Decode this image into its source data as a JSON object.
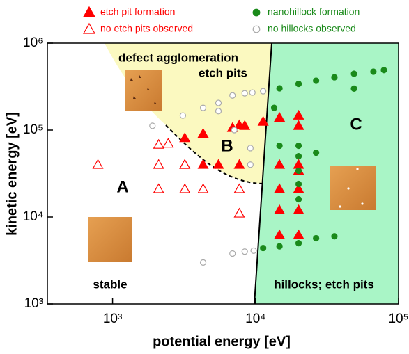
{
  "chart_data": {
    "type": "scatter",
    "x_label": "potential energy [eV]",
    "y_label": "kinetic energy [eV]",
    "x_scale": "log",
    "y_scale": "log",
    "xlim": [
      350,
      100000
    ],
    "ylim": [
      1000,
      1000000
    ],
    "xticks": [
      {
        "value": 1000,
        "label": "10³"
      },
      {
        "value": 10000,
        "label": "10⁴"
      },
      {
        "value": 100000,
        "label": "10⁵"
      }
    ],
    "yticks": [
      {
        "value": 1000,
        "label": "10³"
      },
      {
        "value": 10000,
        "label": "10⁴"
      },
      {
        "value": 100000,
        "label": "10⁵"
      },
      {
        "value": 1000000,
        "label": "10⁶"
      }
    ],
    "annotations": [
      "defect agglomeration",
      "etch pits",
      "A",
      "B",
      "C",
      "stable",
      "hillocks; etch pits"
    ],
    "series": [
      {
        "name": "etch pit formation",
        "marker": "triangle",
        "filled": true,
        "color": "#ff0000",
        "label_color": "#ff0000",
        "x": [
          3200,
          4300,
          6900,
          7700,
          8400,
          11300,
          3200,
          4300,
          5500,
          7700,
          14700,
          14700,
          14700,
          14700,
          14700,
          20000,
          20000,
          20000,
          20000,
          20000,
          20000,
          20000
        ],
        "y": [
          81000,
          91000,
          106000,
          114000,
          112000,
          125000,
          40000,
          40000,
          40000,
          40000,
          139000,
          40000,
          21000,
          12000,
          6200,
          147000,
          112000,
          40000,
          34000,
          21000,
          12000,
          6200
        ]
      },
      {
        "name": "no etch pits observed",
        "marker": "triangle",
        "filled": false,
        "color": "#ff0000",
        "label_color": "#ff0000",
        "x": [
          790,
          2100,
          2450,
          2100,
          3200,
          2100,
          3200,
          4300,
          7700,
          7700
        ],
        "y": [
          40000,
          68000,
          70000,
          40000,
          40000,
          21000,
          21000,
          21000,
          21000,
          11000
        ]
      },
      {
        "name": "nanohillock formation",
        "marker": "circle",
        "filled": true,
        "color": "#1a8a1a",
        "label_color": "#1a8a1a",
        "x": [
          11300,
          14700,
          20000,
          26500,
          35600,
          14700,
          20000,
          26500,
          35600,
          48800,
          66700,
          79000,
          48800,
          13500,
          14700,
          20000,
          20000,
          20000,
          20000,
          20000,
          26500
        ],
        "y": [
          4400,
          4600,
          5000,
          5700,
          6000,
          302000,
          340000,
          370000,
          405000,
          445000,
          470000,
          490000,
          300000,
          180000,
          66000,
          66000,
          50000,
          34000,
          24000,
          16000,
          55000
        ]
      },
      {
        "name": "no hillocks observed",
        "marker": "circle",
        "filled": false,
        "color": "#aaaaaa",
        "label_color": "#1a8a1a",
        "x": [
          1900,
          3100,
          4300,
          5500,
          6900,
          8400,
          9500,
          11300,
          5500,
          7100,
          9200,
          9200,
          4300,
          6900,
          8400,
          9700
        ],
        "y": [
          112000,
          147000,
          180000,
          205000,
          250000,
          265000,
          270000,
          280000,
          165000,
          100000,
          62000,
          40000,
          3000,
          3800,
          4000,
          4100
        ]
      }
    ]
  }
}
